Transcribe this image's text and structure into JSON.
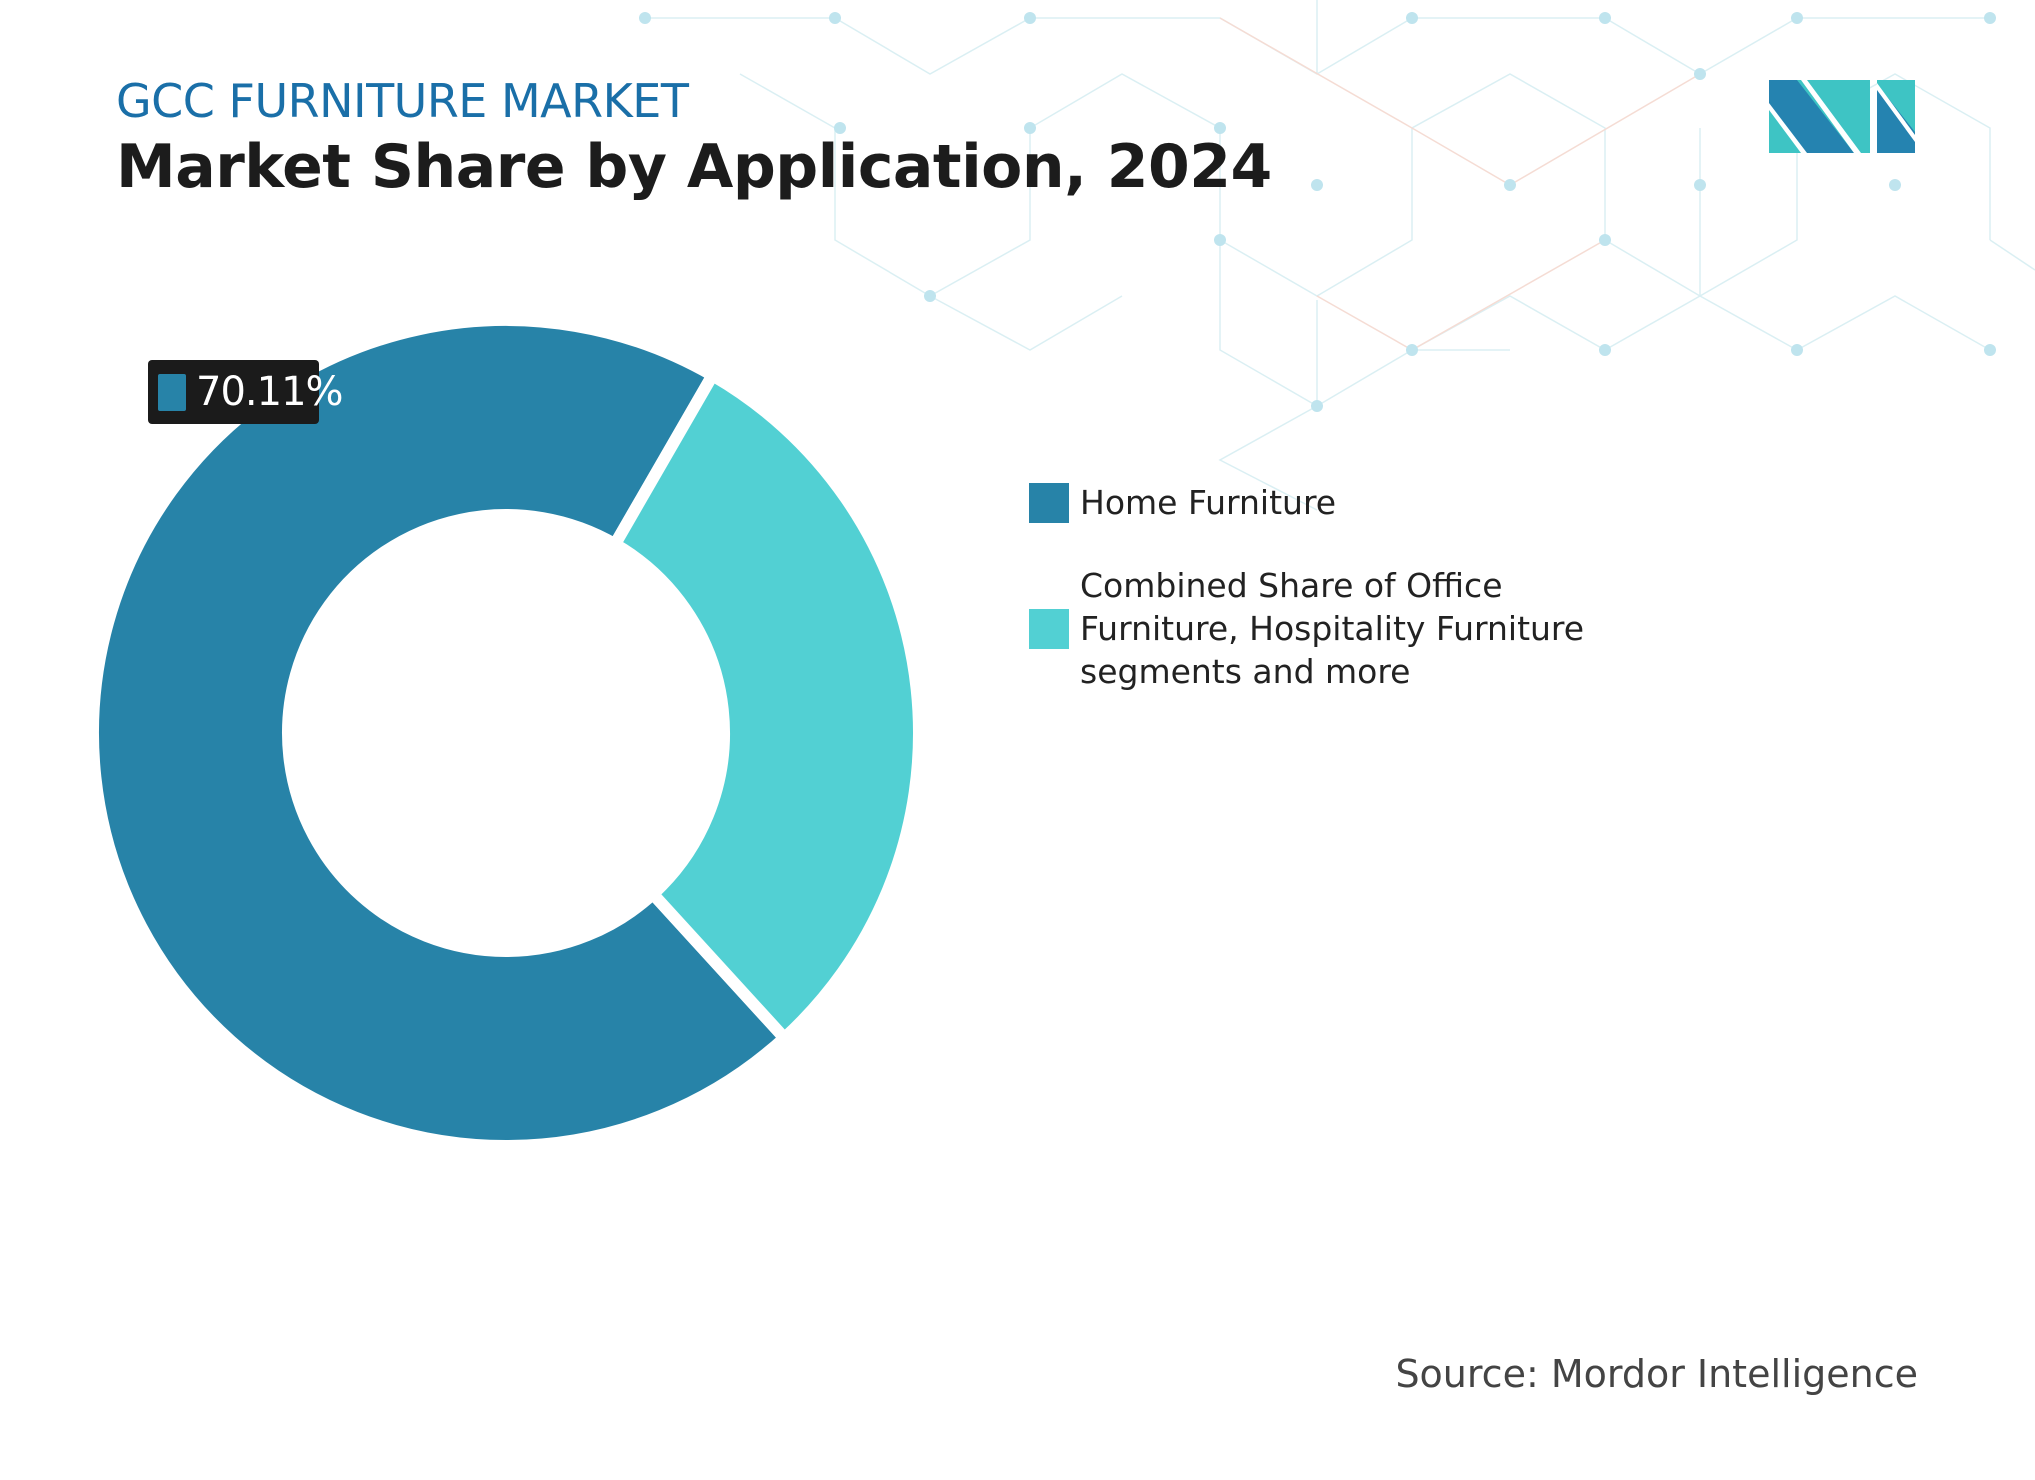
{
  "header": {
    "kicker": "GCC FURNITURE MARKET",
    "title": "Market Share by Application, 2024"
  },
  "logo": {
    "name": "mordor-intelligence-logo",
    "colors": [
      "#2583b0",
      "#3ec4c4"
    ]
  },
  "chart_data": {
    "type": "donut",
    "title": "Market Share by Application, 2024",
    "series": [
      {
        "name": "Home Furniture",
        "value": 70.11,
        "color": "#2783a8"
      },
      {
        "name": "Combined Share of Office Furniture, Hospitality Furniture segments and more",
        "value": 29.89,
        "color": "#52d0d3"
      }
    ],
    "data_labels": [
      {
        "series": "Home Furniture",
        "text": "70.11%"
      }
    ],
    "legend_placement": "right"
  },
  "legend": {
    "items": [
      {
        "label": "Home Furniture"
      },
      {
        "label": "Combined Share of Office Furniture, Hospitality Furniture segments and more"
      }
    ]
  },
  "footer": {
    "source": "Source: Mordor Intelligence"
  }
}
